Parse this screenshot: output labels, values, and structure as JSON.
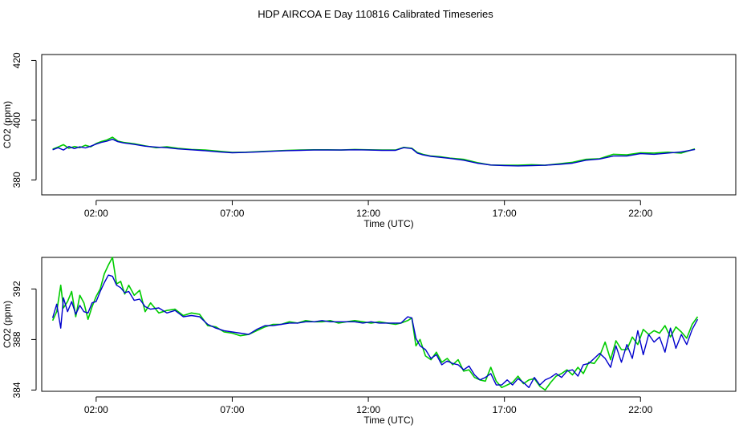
{
  "figure": {
    "title": "HDP AIRCOA E  Day 110816  Calibrated Timeseries"
  },
  "chart_data": [
    {
      "type": "line",
      "xlabel": "Time (UTC)",
      "ylabel": "CO2 (ppm)",
      "xlim": [
        0.0,
        25.5
      ],
      "ylim": [
        375,
        422
      ],
      "xticks": [
        2,
        7,
        12,
        17,
        22
      ],
      "xtick_labels": [
        "02:00",
        "07:00",
        "12:00",
        "17:00",
        "22:00"
      ],
      "yticks": [
        380,
        400,
        420
      ],
      "ytick_labels": [
        "380",
        "400",
        "420"
      ],
      "grid": false,
      "series": [
        {
          "color": "#00cc00",
          "x": [
            0.4,
            0.6,
            0.8,
            1.0,
            1.2,
            1.4,
            1.6,
            1.8,
            2.0,
            2.2,
            2.4,
            2.6,
            2.8,
            3.0,
            3.4,
            3.8,
            4.2,
            4.6,
            5.0,
            5.5,
            6.0,
            6.5,
            7.0,
            7.5,
            8.0,
            8.5,
            9.0,
            9.5,
            10.0,
            10.5,
            11.0,
            11.5,
            12.0,
            12.5,
            13.0,
            13.3,
            13.6,
            13.8,
            14.0,
            14.3,
            14.6,
            15.0,
            15.5,
            16.0,
            16.5,
            17.0,
            17.5,
            18.0,
            18.5,
            19.0,
            19.5,
            20.0,
            20.5,
            21.0,
            21.5,
            22.0,
            22.5,
            23.0,
            23.5,
            24.0
          ],
          "y": [
            390.3,
            391.0,
            391.8,
            390.6,
            391.2,
            390.8,
            391.6,
            391.1,
            392.2,
            392.9,
            393.4,
            394.3,
            393.0,
            392.6,
            392.1,
            391.4,
            390.8,
            391.1,
            390.6,
            390.2,
            390.0,
            389.6,
            389.2,
            389.3,
            389.5,
            389.7,
            389.9,
            390.0,
            390.1,
            390.1,
            390.0,
            390.2,
            390.1,
            390.0,
            390.0,
            390.9,
            390.6,
            389.2,
            388.6,
            388.0,
            387.8,
            387.3,
            386.9,
            385.8,
            385.0,
            384.9,
            384.9,
            385.1,
            384.9,
            385.4,
            385.9,
            386.9,
            387.1,
            388.6,
            388.4,
            389.1,
            389.0,
            389.3,
            389.0,
            390.4
          ]
        },
        {
          "color": "#0000cc",
          "x": [
            0.4,
            0.6,
            0.8,
            1.0,
            1.2,
            1.4,
            1.6,
            1.8,
            2.0,
            2.2,
            2.4,
            2.6,
            2.8,
            3.0,
            3.4,
            3.8,
            4.2,
            4.6,
            5.0,
            5.5,
            6.0,
            6.5,
            7.0,
            7.5,
            8.0,
            8.5,
            9.0,
            9.5,
            10.0,
            10.5,
            11.0,
            11.5,
            12.0,
            12.5,
            13.0,
            13.3,
            13.6,
            13.8,
            14.0,
            14.3,
            14.6,
            15.0,
            15.5,
            16.0,
            16.5,
            17.0,
            17.5,
            18.0,
            18.5,
            19.0,
            19.5,
            20.0,
            20.5,
            21.0,
            21.5,
            22.0,
            22.5,
            23.0,
            23.5,
            24.0
          ],
          "y": [
            390.1,
            390.8,
            390.0,
            391.2,
            390.5,
            391.1,
            390.7,
            391.3,
            392.0,
            392.6,
            393.0,
            393.6,
            392.8,
            392.4,
            391.9,
            391.3,
            391.0,
            390.8,
            390.4,
            390.1,
            389.8,
            389.4,
            389.1,
            389.2,
            389.4,
            389.6,
            389.8,
            389.9,
            390.0,
            390.0,
            390.0,
            390.1,
            390.0,
            389.9,
            389.9,
            390.8,
            390.5,
            389.0,
            388.4,
            387.9,
            387.6,
            387.2,
            386.6,
            385.6,
            385.0,
            384.8,
            384.7,
            384.8,
            384.9,
            385.2,
            385.6,
            386.6,
            387.0,
            388.0,
            388.0,
            388.8,
            388.6,
            389.0,
            389.4,
            390.2
          ]
        }
      ]
    },
    {
      "type": "line",
      "xlabel": "Time (UTC)",
      "ylabel": "CO2 (ppm)",
      "xlim": [
        0.0,
        25.5
      ],
      "ylim": [
        383.9,
        394.5
      ],
      "xticks": [
        2,
        7,
        12,
        17,
        22
      ],
      "xtick_labels": [
        "02:00",
        "07:00",
        "12:00",
        "17:00",
        "22:00"
      ],
      "yticks": [
        384,
        388,
        392
      ],
      "ytick_labels": [
        "384",
        "388",
        "392"
      ],
      "grid": false,
      "series": [
        {
          "color": "#00cc00",
          "x": [
            0.4,
            0.55,
            0.7,
            0.8,
            0.95,
            1.1,
            1.25,
            1.4,
            1.55,
            1.7,
            1.85,
            2.0,
            2.15,
            2.3,
            2.45,
            2.6,
            2.75,
            2.9,
            3.05,
            3.2,
            3.4,
            3.6,
            3.8,
            4.0,
            4.3,
            4.6,
            4.9,
            5.2,
            5.5,
            5.8,
            6.1,
            6.4,
            6.7,
            7.0,
            7.3,
            7.6,
            7.9,
            8.2,
            8.5,
            8.8,
            9.1,
            9.4,
            9.7,
            10.0,
            10.3,
            10.6,
            10.9,
            11.2,
            11.5,
            11.8,
            12.1,
            12.4,
            12.7,
            13.0,
            13.2,
            13.45,
            13.6,
            13.75,
            13.9,
            14.1,
            14.3,
            14.5,
            14.7,
            14.9,
            15.1,
            15.3,
            15.5,
            15.7,
            15.9,
            16.1,
            16.3,
            16.5,
            16.7,
            16.9,
            17.1,
            17.3,
            17.5,
            17.7,
            17.9,
            18.1,
            18.3,
            18.5,
            18.7,
            18.9,
            19.1,
            19.3,
            19.5,
            19.7,
            19.9,
            20.1,
            20.3,
            20.5,
            20.7,
            20.9,
            21.1,
            21.3,
            21.5,
            21.7,
            21.9,
            22.1,
            22.3,
            22.5,
            22.7,
            22.9,
            23.1,
            23.3,
            23.5,
            23.7,
            23.9,
            24.1
          ],
          "y": [
            389.5,
            390.2,
            392.3,
            390.5,
            391.0,
            391.8,
            389.8,
            391.5,
            390.9,
            389.6,
            390.6,
            391.4,
            392.0,
            393.2,
            393.9,
            394.5,
            392.4,
            392.6,
            391.6,
            392.3,
            391.5,
            391.9,
            390.2,
            390.9,
            390.1,
            390.3,
            390.4,
            389.9,
            390.1,
            390.0,
            389.1,
            389.0,
            388.6,
            388.5,
            388.3,
            388.4,
            388.7,
            389.0,
            389.2,
            389.2,
            389.4,
            389.3,
            389.5,
            389.4,
            389.4,
            389.5,
            389.3,
            389.4,
            389.5,
            389.4,
            389.3,
            389.4,
            389.3,
            389.2,
            389.3,
            389.5,
            389.7,
            387.5,
            388.0,
            386.7,
            386.4,
            387.0,
            386.2,
            386.5,
            386.0,
            386.4,
            385.5,
            385.6,
            385.0,
            384.8,
            384.7,
            385.8,
            384.7,
            384.2,
            384.4,
            384.6,
            385.1,
            384.5,
            384.8,
            384.9,
            384.3,
            384.0,
            384.6,
            385.1,
            385.3,
            385.6,
            385.2,
            385.8,
            385.3,
            386.2,
            386.1,
            386.7,
            387.8,
            386.4,
            387.9,
            387.2,
            387.2,
            388.2,
            387.6,
            388.8,
            388.4,
            388.7,
            388.5,
            389.1,
            388.2,
            389.0,
            388.6,
            388.1,
            389.2,
            389.8
          ]
        },
        {
          "color": "#0000cc",
          "x": [
            0.4,
            0.55,
            0.7,
            0.8,
            0.95,
            1.1,
            1.25,
            1.4,
            1.55,
            1.7,
            1.85,
            2.0,
            2.15,
            2.3,
            2.45,
            2.6,
            2.75,
            2.9,
            3.05,
            3.2,
            3.4,
            3.6,
            3.8,
            4.0,
            4.3,
            4.6,
            4.9,
            5.2,
            5.5,
            5.8,
            6.1,
            6.4,
            6.7,
            7.0,
            7.3,
            7.6,
            7.9,
            8.2,
            8.5,
            8.8,
            9.1,
            9.4,
            9.7,
            10.0,
            10.3,
            10.6,
            10.9,
            11.2,
            11.5,
            11.8,
            12.1,
            12.4,
            12.7,
            13.0,
            13.2,
            13.45,
            13.6,
            13.75,
            13.9,
            14.1,
            14.3,
            14.5,
            14.7,
            14.9,
            15.1,
            15.3,
            15.5,
            15.7,
            15.9,
            16.1,
            16.3,
            16.5,
            16.7,
            16.9,
            17.1,
            17.3,
            17.5,
            17.7,
            17.9,
            18.1,
            18.3,
            18.5,
            18.7,
            18.9,
            19.1,
            19.3,
            19.5,
            19.7,
            19.9,
            20.1,
            20.3,
            20.5,
            20.7,
            20.9,
            21.1,
            21.3,
            21.5,
            21.7,
            21.9,
            22.1,
            22.3,
            22.5,
            22.7,
            22.9,
            23.1,
            23.3,
            23.5,
            23.7,
            23.9,
            24.1
          ],
          "y": [
            389.7,
            390.8,
            388.9,
            391.3,
            390.2,
            391.0,
            390.0,
            390.7,
            390.2,
            390.1,
            390.9,
            391.0,
            391.8,
            392.5,
            393.1,
            393.0,
            392.3,
            392.1,
            391.7,
            391.8,
            391.1,
            391.2,
            390.6,
            390.4,
            390.5,
            390.1,
            390.3,
            389.8,
            389.9,
            389.8,
            389.2,
            388.9,
            388.7,
            388.6,
            388.5,
            388.4,
            388.8,
            389.1,
            389.1,
            389.2,
            389.3,
            389.3,
            389.4,
            389.4,
            389.5,
            389.4,
            389.4,
            389.4,
            389.4,
            389.3,
            389.4,
            389.3,
            389.3,
            389.3,
            389.3,
            389.8,
            389.7,
            388.1,
            387.5,
            387.2,
            386.5,
            386.8,
            386.0,
            386.3,
            386.1,
            386.0,
            385.6,
            385.9,
            385.2,
            384.8,
            385.0,
            385.3,
            384.4,
            384.4,
            384.8,
            384.4,
            384.9,
            384.6,
            384.2,
            385.0,
            384.4,
            384.8,
            385.0,
            385.3,
            385.0,
            385.5,
            385.6,
            385.1,
            386.0,
            386.1,
            386.5,
            386.9,
            386.5,
            385.8,
            387.5,
            386.2,
            387.6,
            386.5,
            388.7,
            386.8,
            388.4,
            387.8,
            388.2,
            387.0,
            388.9,
            387.3,
            388.4,
            387.6,
            388.8,
            389.6
          ]
        }
      ]
    }
  ]
}
